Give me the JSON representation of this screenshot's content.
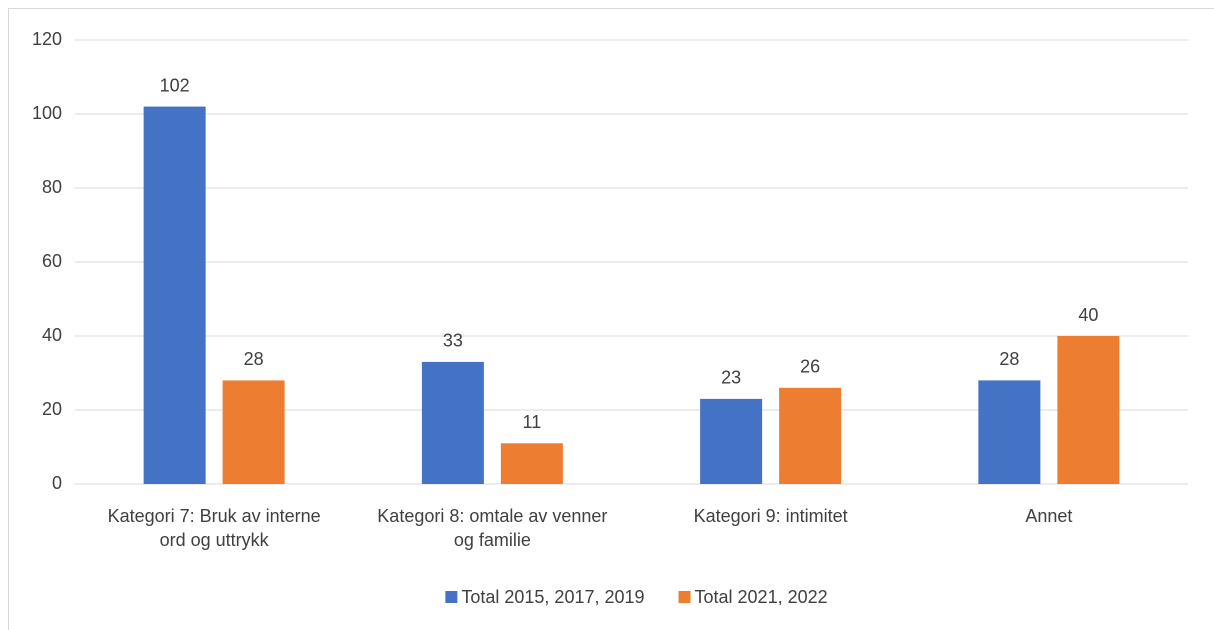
{
  "chart_data": {
    "type": "bar",
    "categories": [
      "Kategori 7: Bruk av interne ord og uttrykk",
      "Kategori 8: omtale av venner og familie",
      "Kategori 9: intimitet",
      "Annet"
    ],
    "series": [
      {
        "name": "Total 2015, 2017, 2019",
        "color": "#4472c4",
        "values": [
          102,
          33,
          23,
          28
        ]
      },
      {
        "name": "Total 2021, 2022",
        "color": "#ed7d31",
        "values": [
          28,
          11,
          26,
          40
        ]
      }
    ],
    "ylim": [
      0,
      120
    ],
    "yticks": [
      0,
      20,
      40,
      60,
      80,
      100,
      120
    ],
    "grid": true,
    "legend": "bottom"
  }
}
